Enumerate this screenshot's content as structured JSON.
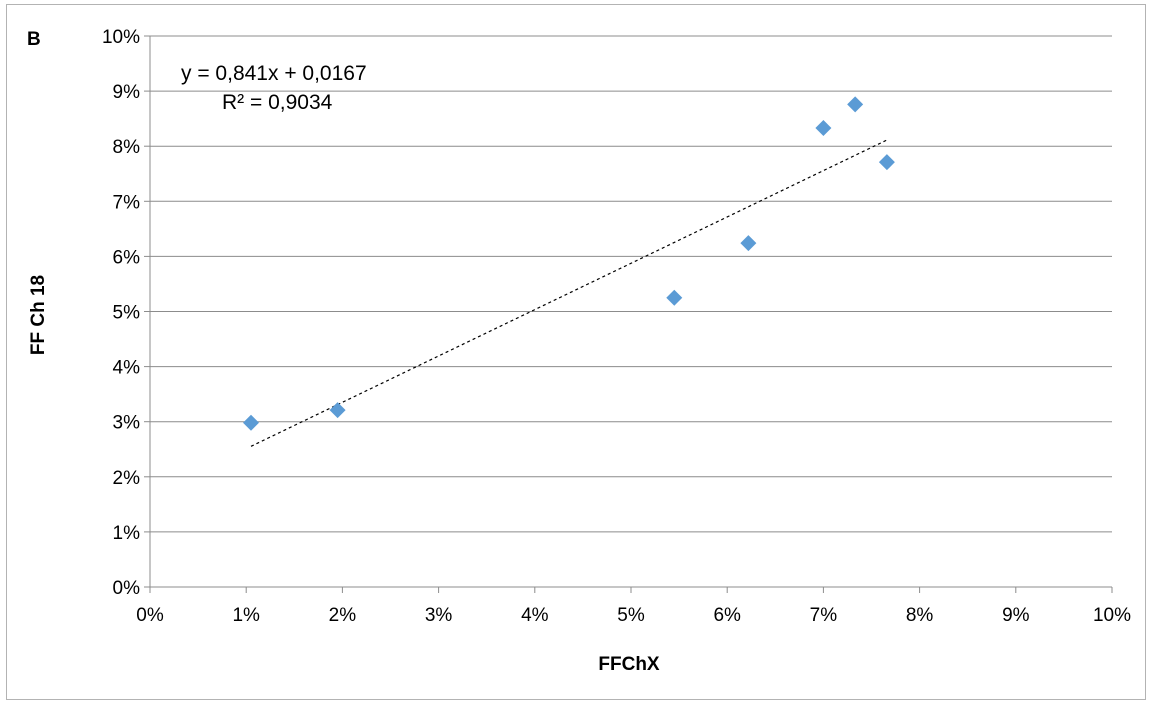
{
  "chart_data": {
    "type": "scatter",
    "panel_label": "B",
    "xlabel": "FFChX",
    "ylabel": "FF Ch 18",
    "xlim": [
      0,
      0.1
    ],
    "ylim": [
      0,
      0.1
    ],
    "x_ticks": [
      "0%",
      "1%",
      "2%",
      "3%",
      "4%",
      "5%",
      "6%",
      "7%",
      "8%",
      "9%",
      "10%"
    ],
    "y_ticks": [
      "0%",
      "1%",
      "2%",
      "3%",
      "4%",
      "5%",
      "6%",
      "7%",
      "8%",
      "9%",
      "10%"
    ],
    "grid": "horizontal",
    "series": [
      {
        "x": [
          0.0105,
          0.0195,
          0.0545,
          0.0622,
          0.07,
          0.0733,
          0.0766
        ],
        "y": [
          0.0298,
          0.0321,
          0.0525,
          0.0624,
          0.0833,
          0.0876,
          0.0771
        ],
        "color": "#5b9bd5",
        "marker": "diamond"
      }
    ],
    "trendline": {
      "slope": 0.841,
      "intercept": 0.0167,
      "x_range": [
        0.0105,
        0.0766
      ],
      "style": "dashed",
      "color": "#000000",
      "equation": "y = 0,841x + 0,0167",
      "r_squared": "R² = 0,9034"
    }
  }
}
